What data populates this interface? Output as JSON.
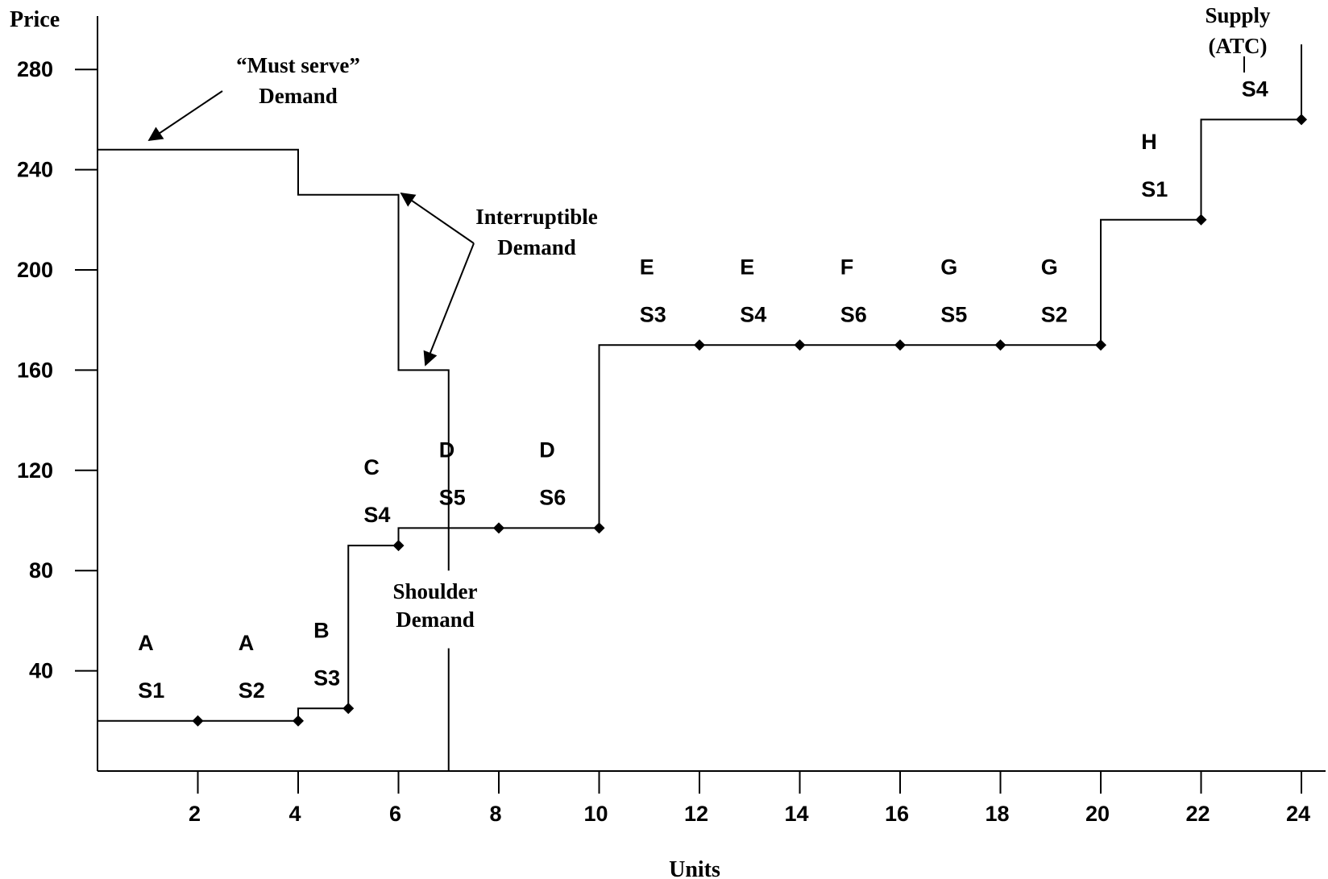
{
  "chart_data": {
    "type": "line",
    "title": "",
    "xlabel": "Units",
    "ylabel": "Price",
    "xlim": [
      0,
      24
    ],
    "ylim": [
      0,
      280
    ],
    "x_ticks": [
      "2",
      "4",
      "6",
      "8",
      "10",
      "12",
      "14",
      "16",
      "18",
      "20",
      "22",
      "24"
    ],
    "y_ticks": [
      "40",
      "80",
      "120",
      "160",
      "200",
      "240",
      "280"
    ],
    "grid": false,
    "series": [
      {
        "name": "Supply (ATC)",
        "style": "step-with-markers",
        "points": [
          {
            "x": 0,
            "y": 20
          },
          {
            "x": 2,
            "y": 20
          },
          {
            "x": 4,
            "y": 20
          },
          {
            "x": 4,
            "y": 25
          },
          {
            "x": 5,
            "y": 25
          },
          {
            "x": 5,
            "y": 90
          },
          {
            "x": 6,
            "y": 90
          },
          {
            "x": 6,
            "y": 97
          },
          {
            "x": 8,
            "y": 97
          },
          {
            "x": 10,
            "y": 97
          },
          {
            "x": 10,
            "y": 170
          },
          {
            "x": 12,
            "y": 170
          },
          {
            "x": 14,
            "y": 170
          },
          {
            "x": 16,
            "y": 170
          },
          {
            "x": 18,
            "y": 170
          },
          {
            "x": 20,
            "y": 170
          },
          {
            "x": 20,
            "y": 220
          },
          {
            "x": 22,
            "y": 220
          },
          {
            "x": 22,
            "y": 260
          },
          {
            "x": 24,
            "y": 260
          },
          {
            "x": 24,
            "y": 290
          }
        ],
        "markers": [
          {
            "x": 2,
            "y": 20
          },
          {
            "x": 4,
            "y": 20
          },
          {
            "x": 5,
            "y": 25
          },
          {
            "x": 6,
            "y": 90
          },
          {
            "x": 8,
            "y": 97
          },
          {
            "x": 10,
            "y": 97
          },
          {
            "x": 12,
            "y": 170
          },
          {
            "x": 14,
            "y": 170
          },
          {
            "x": 16,
            "y": 170
          },
          {
            "x": 18,
            "y": 170
          },
          {
            "x": 20,
            "y": 170
          },
          {
            "x": 22,
            "y": 220
          },
          {
            "x": 24,
            "y": 260
          }
        ]
      },
      {
        "name": "Demand",
        "style": "step",
        "points": [
          {
            "x": 0,
            "y": 248
          },
          {
            "x": 4,
            "y": 248
          },
          {
            "x": 4,
            "y": 230
          },
          {
            "x": 6,
            "y": 230
          },
          {
            "x": 6,
            "y": 160
          },
          {
            "x": 7,
            "y": 160
          },
          {
            "x": 7,
            "y": 80
          }
        ],
        "extra_vertical": {
          "x": 7,
          "y_from": 0,
          "y_to": 49
        }
      }
    ],
    "segment_labels": [
      {
        "letter": "A",
        "unit": "S1",
        "x": 1.0
      },
      {
        "letter": "A",
        "unit": "S2",
        "x": 3.0
      },
      {
        "letter": "B",
        "unit": "S3",
        "x": 4.5
      },
      {
        "letter": "C",
        "unit": "S4",
        "x": 5.5
      },
      {
        "letter": "D",
        "unit": "S5",
        "x": 7.0
      },
      {
        "letter": "D",
        "unit": "S6",
        "x": 9.0
      },
      {
        "letter": "E",
        "unit": "S3",
        "x": 11.0
      },
      {
        "letter": "E",
        "unit": "S4",
        "x": 13.0
      },
      {
        "letter": "F",
        "unit": "S6",
        "x": 15.0
      },
      {
        "letter": "G",
        "unit": "S5",
        "x": 17.0
      },
      {
        "letter": "G",
        "unit": "S2",
        "x": 19.0
      },
      {
        "letter": "H",
        "unit": "S1",
        "x": 21.0
      },
      {
        "letter": "",
        "unit": "S4",
        "x": 23.0
      }
    ],
    "annotations": {
      "must_serve": [
        "“Must serve”",
        "Demand"
      ],
      "interruptible": [
        "Interruptible",
        "Demand"
      ],
      "shoulder": [
        "Shoulder",
        "Demand"
      ],
      "supply": [
        "Supply",
        "(ATC)"
      ]
    }
  }
}
